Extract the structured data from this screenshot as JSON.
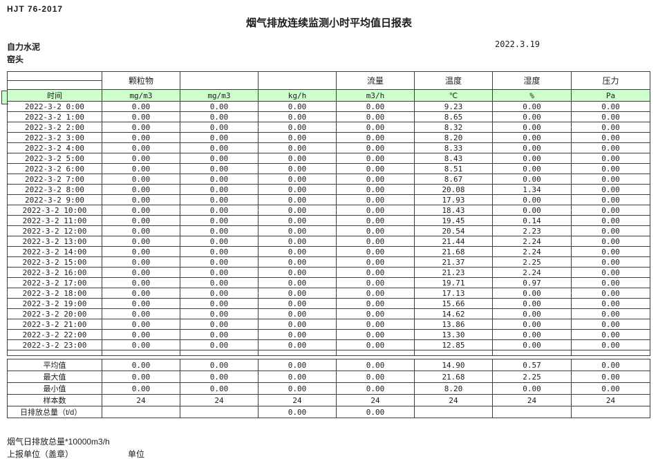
{
  "doc": {
    "code": "HJT  76-2017",
    "title": "烟气排放连续监测小时平均值日报表",
    "company": "自力水泥",
    "station": "窑头",
    "date": "2022.3.19"
  },
  "colors": {
    "header_green": "#ccffcc",
    "border": "#3c3c3c"
  },
  "table": {
    "group_headers": [
      "",
      "颗粒物",
      "",
      "",
      "流量",
      "温度",
      "湿度",
      "压力"
    ],
    "unit_headers": [
      "时间",
      "mg/m3",
      "mg/m3",
      "kg/h",
      "m3/h",
      "℃",
      "%",
      "Pa"
    ],
    "rows": [
      [
        "2022-3-2 0:00",
        "0.00",
        "0.00",
        "0.00",
        "0.00",
        "9.23",
        "0.00",
        "0.00"
      ],
      [
        "2022-3-2 1:00",
        "0.00",
        "0.00",
        "0.00",
        "0.00",
        "8.65",
        "0.00",
        "0.00"
      ],
      [
        "2022-3-2 2:00",
        "0.00",
        "0.00",
        "0.00",
        "0.00",
        "8.32",
        "0.00",
        "0.00"
      ],
      [
        "2022-3-2 3:00",
        "0.00",
        "0.00",
        "0.00",
        "0.00",
        "8.20",
        "0.00",
        "0.00"
      ],
      [
        "2022-3-2 4:00",
        "0.00",
        "0.00",
        "0.00",
        "0.00",
        "8.33",
        "0.00",
        "0.00"
      ],
      [
        "2022-3-2 5:00",
        "0.00",
        "0.00",
        "0.00",
        "0.00",
        "8.43",
        "0.00",
        "0.00"
      ],
      [
        "2022-3-2 6:00",
        "0.00",
        "0.00",
        "0.00",
        "0.00",
        "8.51",
        "0.00",
        "0.00"
      ],
      [
        "2022-3-2 7:00",
        "0.00",
        "0.00",
        "0.00",
        "0.00",
        "8.67",
        "0.00",
        "0.00"
      ],
      [
        "2022-3-2 8:00",
        "0.00",
        "0.00",
        "0.00",
        "0.00",
        "20.08",
        "1.34",
        "0.00"
      ],
      [
        "2022-3-2 9:00",
        "0.00",
        "0.00",
        "0.00",
        "0.00",
        "17.93",
        "0.00",
        "0.00"
      ],
      [
        "2022-3-2 10:00",
        "0.00",
        "0.00",
        "0.00",
        "0.00",
        "18.43",
        "0.00",
        "0.00"
      ],
      [
        "2022-3-2 11:00",
        "0.00",
        "0.00",
        "0.00",
        "0.00",
        "19.45",
        "0.14",
        "0.00"
      ],
      [
        "2022-3-2 12:00",
        "0.00",
        "0.00",
        "0.00",
        "0.00",
        "20.54",
        "2.23",
        "0.00"
      ],
      [
        "2022-3-2 13:00",
        "0.00",
        "0.00",
        "0.00",
        "0.00",
        "21.44",
        "2.24",
        "0.00"
      ],
      [
        "2022-3-2 14:00",
        "0.00",
        "0.00",
        "0.00",
        "0.00",
        "21.68",
        "2.24",
        "0.00"
      ],
      [
        "2022-3-2 15:00",
        "0.00",
        "0.00",
        "0.00",
        "0.00",
        "21.37",
        "2.25",
        "0.00"
      ],
      [
        "2022-3-2 16:00",
        "0.00",
        "0.00",
        "0.00",
        "0.00",
        "21.23",
        "2.24",
        "0.00"
      ],
      [
        "2022-3-2 17:00",
        "0.00",
        "0.00",
        "0.00",
        "0.00",
        "19.71",
        "0.97",
        "0.00"
      ],
      [
        "2022-3-2 18:00",
        "0.00",
        "0.00",
        "0.00",
        "0.00",
        "17.13",
        "0.00",
        "0.00"
      ],
      [
        "2022-3-2 19:00",
        "0.00",
        "0.00",
        "0.00",
        "0.00",
        "15.66",
        "0.00",
        "0.00"
      ],
      [
        "2022-3-2 20:00",
        "0.00",
        "0.00",
        "0.00",
        "0.00",
        "14.62",
        "0.00",
        "0.00"
      ],
      [
        "2022-3-2 21:00",
        "0.00",
        "0.00",
        "0.00",
        "0.00",
        "13.86",
        "0.00",
        "0.00"
      ],
      [
        "2022-3-2 22:00",
        "0.00",
        "0.00",
        "0.00",
        "0.00",
        "13.30",
        "0.00",
        "0.00"
      ],
      [
        "2022-3-2 23:00",
        "0.00",
        "0.00",
        "0.00",
        "0.00",
        "12.85",
        "0.00",
        "0.00"
      ]
    ],
    "summary": [
      {
        "label": "平均值",
        "values": [
          "0.00",
          "0.00",
          "0.00",
          "0.00",
          "14.90",
          "0.57",
          "0.00"
        ]
      },
      {
        "label": "最大值",
        "values": [
          "0.00",
          "0.00",
          "0.00",
          "0.00",
          "21.68",
          "2.25",
          "0.00"
        ]
      },
      {
        "label": "最小值",
        "values": [
          "0.00",
          "0.00",
          "0.00",
          "0.00",
          "8.20",
          "0.00",
          "0.00"
        ]
      },
      {
        "label": "样本数",
        "values": [
          "24",
          "24",
          "24",
          "24",
          "24",
          "24",
          "24"
        ]
      },
      {
        "label": "日排放总量（t/d）",
        "values": [
          "",
          "",
          "0.00",
          "0.00",
          "",
          "",
          ""
        ]
      }
    ]
  },
  "footer": {
    "note": "烟气日排放总量*10000m3/h",
    "report_unit_label": "上报单位（盖章）",
    "unit_label": "单位"
  }
}
